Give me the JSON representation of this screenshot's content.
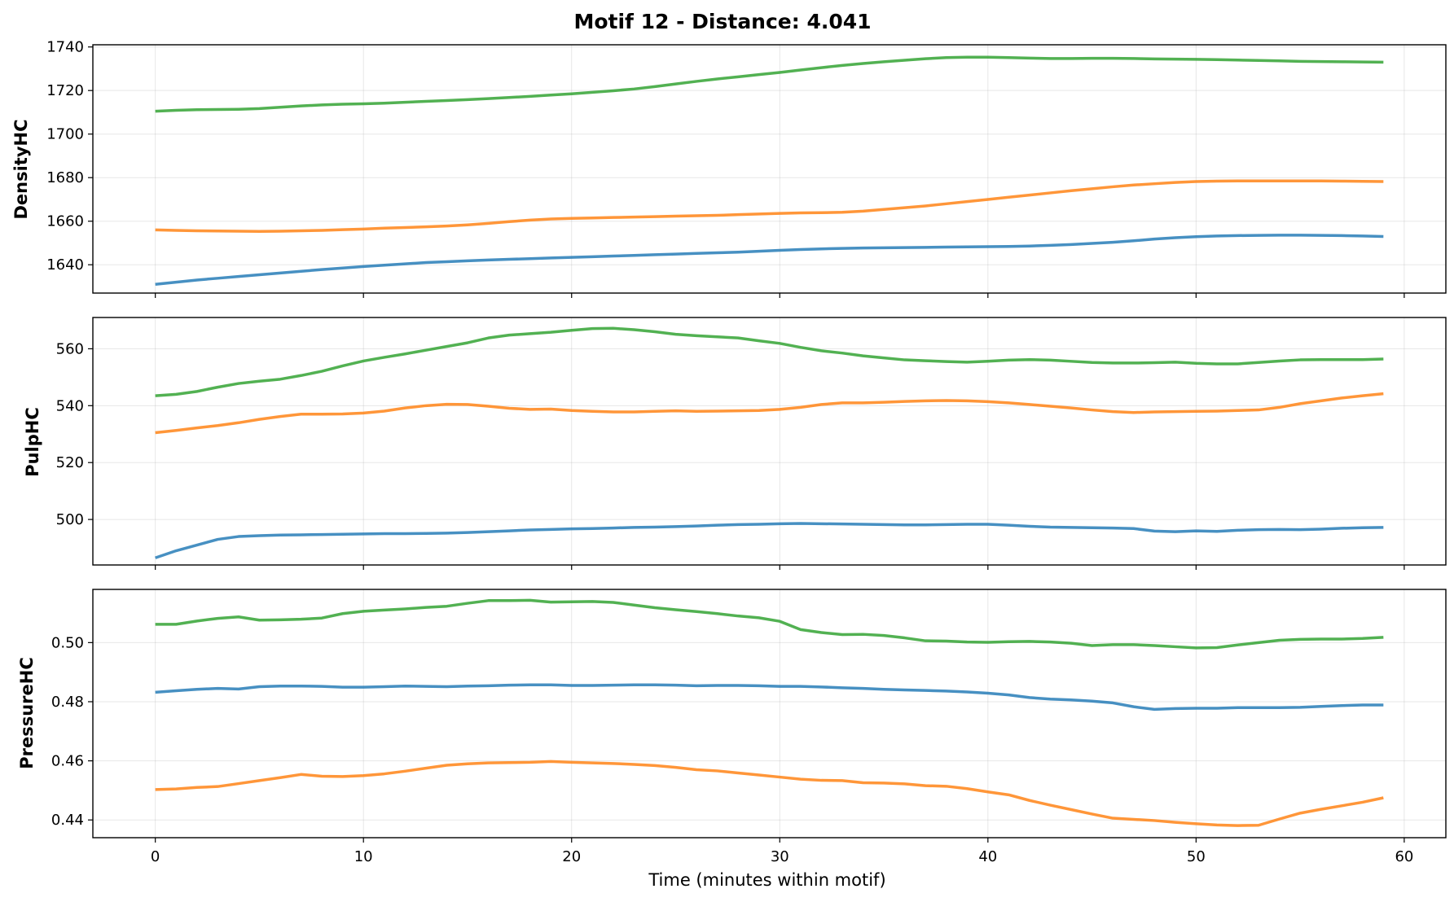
{
  "chart_data": {
    "type": "line",
    "title": "Motif 12 - Distance: 4.041",
    "xlabel": "Time (minutes within motif)",
    "xlim": [
      -3,
      62
    ],
    "xticks": [
      0,
      10,
      20,
      30,
      40,
      50,
      60
    ],
    "grid": true,
    "colors": [
      "#1f77b4",
      "#ff7f0e",
      "#2ca02c"
    ],
    "x": [
      0,
      1,
      2,
      3,
      4,
      5,
      6,
      7,
      8,
      9,
      10,
      11,
      12,
      13,
      14,
      15,
      16,
      17,
      18,
      19,
      20,
      21,
      22,
      23,
      24,
      25,
      26,
      27,
      28,
      29,
      30,
      31,
      32,
      33,
      34,
      35,
      36,
      37,
      38,
      39,
      40,
      41,
      42,
      43,
      44,
      45,
      46,
      47,
      48,
      49,
      50,
      51,
      52,
      53,
      54,
      55,
      56,
      57,
      58,
      59
    ],
    "panels": [
      {
        "ylabel": "DensityHC",
        "ylim": [
          1627,
          1741
        ],
        "yticks": [
          1640,
          1660,
          1680,
          1700,
          1720,
          1740
        ],
        "series": [
          {
            "values": [
              1631,
              1632,
              1633,
              1633.8,
              1634.6,
              1635.4,
              1636.2,
              1637,
              1637.8,
              1638.5,
              1639.2,
              1639.8,
              1640.4,
              1641,
              1641.4,
              1641.8,
              1642.2,
              1642.5,
              1642.8,
              1643.1,
              1643.4,
              1643.7,
              1644,
              1644.3,
              1644.6,
              1644.9,
              1645.2,
              1645.5,
              1645.8,
              1646.2,
              1646.6,
              1647,
              1647.3,
              1647.5,
              1647.7,
              1647.8,
              1647.9,
              1648,
              1648.1,
              1648.2,
              1648.3,
              1648.4,
              1648.6,
              1648.9,
              1649.3,
              1649.8,
              1650.3,
              1651,
              1651.8,
              1652.4,
              1652.9,
              1653.2,
              1653.4,
              1653.5,
              1653.6,
              1653.6,
              1653.5,
              1653.4,
              1653.2,
              1653
            ]
          },
          {
            "values": [
              1656,
              1655.8,
              1655.6,
              1655.5,
              1655.4,
              1655.3,
              1655.4,
              1655.6,
              1655.8,
              1656.1,
              1656.4,
              1656.8,
              1657.1,
              1657.4,
              1657.8,
              1658.3,
              1659,
              1659.8,
              1660.5,
              1661,
              1661.3,
              1661.5,
              1661.7,
              1661.9,
              1662.1,
              1662.3,
              1662.5,
              1662.7,
              1663,
              1663.3,
              1663.6,
              1663.8,
              1663.9,
              1664.1,
              1664.6,
              1665.4,
              1666.2,
              1667,
              1668,
              1669,
              1670,
              1671,
              1672,
              1673,
              1674,
              1674.9,
              1675.8,
              1676.6,
              1677.2,
              1677.8,
              1678.2,
              1678.4,
              1678.5,
              1678.5,
              1678.5,
              1678.5,
              1678.5,
              1678.4,
              1678.3,
              1678.2
            ]
          },
          {
            "values": [
              1710.5,
              1710.9,
              1711.2,
              1711.3,
              1711.4,
              1711.7,
              1712.3,
              1712.9,
              1713.4,
              1713.7,
              1713.9,
              1714.2,
              1714.6,
              1715,
              1715.4,
              1715.8,
              1716.3,
              1716.8,
              1717.3,
              1717.9,
              1718.5,
              1719.2,
              1719.9,
              1720.7,
              1721.8,
              1723,
              1724.2,
              1725.3,
              1726.3,
              1727.3,
              1728.3,
              1729.4,
              1730.5,
              1731.5,
              1732.4,
              1733.2,
              1733.9,
              1734.6,
              1735.1,
              1735.3,
              1735.3,
              1735.1,
              1734.9,
              1734.7,
              1734.7,
              1734.8,
              1734.8,
              1734.7,
              1734.5,
              1734.4,
              1734.3,
              1734.2,
              1734,
              1733.8,
              1733.6,
              1733.4,
              1733.3,
              1733.2,
              1733.1,
              1733
            ]
          }
        ]
      },
      {
        "ylabel": "PulpHC",
        "ylim": [
          484,
          571
        ],
        "yticks": [
          500,
          520,
          540,
          560
        ],
        "series": [
          {
            "values": [
              486.5,
              489,
              491,
              493,
              494,
              494.3,
              494.5,
              494.6,
              494.7,
              494.8,
              494.9,
              495,
              495,
              495.1,
              495.2,
              495.4,
              495.7,
              496,
              496.3,
              496.5,
              496.7,
              496.8,
              497,
              497.2,
              497.3,
              497.5,
              497.7,
              498,
              498.2,
              498.3,
              498.5,
              498.6,
              498.5,
              498.4,
              498.3,
              498.2,
              498.1,
              498.1,
              498.2,
              498.3,
              498.3,
              498,
              497.6,
              497.3,
              497.2,
              497.1,
              497,
              496.8,
              495.9,
              495.7,
              496,
              495.8,
              496.2,
              496.4,
              496.5,
              496.4,
              496.6,
              496.9,
              497.1,
              497.2
            ]
          },
          {
            "values": [
              530.5,
              531.3,
              532.2,
              533,
              534,
              535.2,
              536.2,
              537,
              537,
              537.1,
              537.4,
              538.1,
              539.2,
              540,
              540.5,
              540.4,
              539.8,
              539.1,
              538.7,
              538.8,
              538.3,
              538,
              537.8,
              537.8,
              538,
              538.2,
              538,
              538.1,
              538.2,
              538.3,
              538.7,
              539.4,
              540.4,
              541,
              541,
              541.2,
              541.5,
              541.7,
              541.8,
              541.7,
              541.4,
              541,
              540.4,
              539.8,
              539.2,
              538.5,
              537.9,
              537.6,
              537.8,
              537.9,
              538,
              538.1,
              538.3,
              538.5,
              539.4,
              540.7,
              541.7,
              542.7,
              543.5,
              544.2
            ]
          },
          {
            "values": [
              543.5,
              544,
              545,
              546.5,
              547.8,
              548.6,
              549.3,
              550.6,
              552.1,
              554,
              555.7,
              557,
              558.2,
              559.5,
              560.8,
              562.1,
              563.8,
              564.8,
              565.3,
              565.8,
              566.5,
              567.1,
              567.2,
              566.7,
              566,
              565.1,
              564.6,
              564.2,
              563.8,
              562.8,
              561.9,
              560.5,
              559.3,
              558.5,
              557.5,
              556.8,
              556.1,
              555.8,
              555.5,
              555.3,
              555.6,
              556,
              556.2,
              556,
              555.6,
              555.2,
              555,
              555,
              555.1,
              555.3,
              554.9,
              554.7,
              554.7,
              555.2,
              555.7,
              556.1,
              556.2,
              556.2,
              556.2,
              556.4
            ]
          }
        ]
      },
      {
        "ylabel": "PressureHC",
        "ylim": [
          0.434,
          0.518
        ],
        "yticks": [
          0.44,
          0.46,
          0.48,
          0.5
        ],
        "series": [
          {
            "values": [
              0.4832,
              0.4837,
              0.4842,
              0.4845,
              0.4843,
              0.4851,
              0.4853,
              0.4853,
              0.4852,
              0.4849,
              0.4849,
              0.4851,
              0.4853,
              0.4852,
              0.4851,
              0.4853,
              0.4854,
              0.4856,
              0.4857,
              0.4857,
              0.4855,
              0.4855,
              0.4856,
              0.4857,
              0.4857,
              0.4856,
              0.4854,
              0.4855,
              0.4855,
              0.4854,
              0.4852,
              0.4852,
              0.485,
              0.4847,
              0.4845,
              0.4842,
              0.484,
              0.4838,
              0.4836,
              0.4833,
              0.4829,
              0.4823,
              0.4814,
              0.4809,
              0.4806,
              0.4802,
              0.4796,
              0.4783,
              0.4774,
              0.4777,
              0.4778,
              0.4778,
              0.478,
              0.478,
              0.478,
              0.4781,
              0.4784,
              0.4787,
              0.4789,
              0.4789
            ]
          },
          {
            "values": [
              0.4503,
              0.4505,
              0.451,
              0.4513,
              0.4523,
              0.4533,
              0.4543,
              0.4554,
              0.4548,
              0.4547,
              0.455,
              0.4556,
              0.4565,
              0.4575,
              0.4585,
              0.459,
              0.4593,
              0.4594,
              0.4595,
              0.4598,
              0.4595,
              0.4593,
              0.4591,
              0.4588,
              0.4584,
              0.4578,
              0.457,
              0.4566,
              0.4559,
              0.4552,
              0.4545,
              0.4538,
              0.4534,
              0.4533,
              0.4526,
              0.4525,
              0.4522,
              0.4516,
              0.4514,
              0.4506,
              0.4495,
              0.4485,
              0.4466,
              0.445,
              0.4435,
              0.442,
              0.4406,
              0.4402,
              0.4398,
              0.4392,
              0.4387,
              0.4383,
              0.4381,
              0.4382,
              0.4403,
              0.4423,
              0.4436,
              0.4448,
              0.446,
              0.4475
            ]
          },
          {
            "values": [
              0.5062,
              0.5062,
              0.5073,
              0.5082,
              0.5087,
              0.5076,
              0.5077,
              0.5079,
              0.5083,
              0.5098,
              0.5106,
              0.511,
              0.5114,
              0.5119,
              0.5123,
              0.5133,
              0.5142,
              0.5142,
              0.5143,
              0.5137,
              0.5138,
              0.5139,
              0.5136,
              0.5127,
              0.5118,
              0.5111,
              0.5105,
              0.5098,
              0.509,
              0.5084,
              0.5072,
              0.5044,
              0.5034,
              0.5027,
              0.5028,
              0.5024,
              0.5016,
              0.5006,
              0.5005,
              0.5002,
              0.5001,
              0.5003,
              0.5004,
              0.5002,
              0.4998,
              0.499,
              0.4993,
              0.4993,
              0.499,
              0.4986,
              0.4982,
              0.4983,
              0.4992,
              0.5,
              0.5008,
              0.5011,
              0.5012,
              0.5012,
              0.5014,
              0.5018
            ]
          }
        ]
      }
    ]
  }
}
